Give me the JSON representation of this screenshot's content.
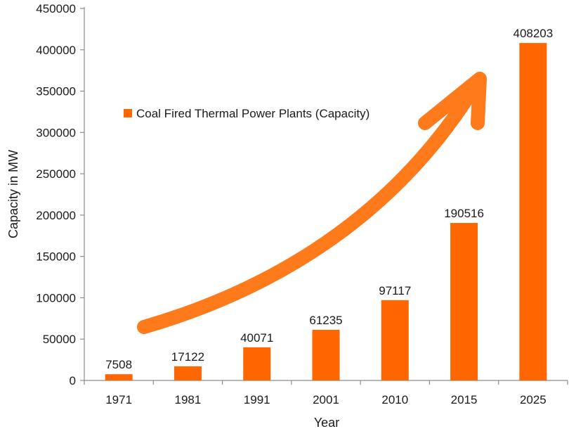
{
  "chart_data": {
    "type": "bar",
    "categories": [
      "1971",
      "1981",
      "1991",
      "2001",
      "2010",
      "2015",
      "2025"
    ],
    "series": [
      {
        "name": "Coal Fired Thermal Power Plants (Capacity)",
        "values": [
          7508,
          17122,
          40071,
          61235,
          97117,
          190516,
          408203
        ]
      }
    ],
    "data_labels": [
      "7508",
      "17122",
      "40071",
      "61235",
      "97117",
      "190516",
      "408203"
    ],
    "title": "",
    "xlabel": "Year",
    "ylabel": "Capacity in MW",
    "ylim": [
      0,
      450000
    ],
    "yticks": [
      0,
      50000,
      100000,
      150000,
      200000,
      250000,
      300000,
      350000,
      400000,
      450000
    ],
    "ytick_labels": [
      "0",
      "50000",
      "100000",
      "150000",
      "200000",
      "250000",
      "300000",
      "350000",
      "400000",
      "450000"
    ],
    "grid": false,
    "legend_position": "top-left inside plot",
    "annotation": "upward trend arrow",
    "colors": {
      "bar": "#ff6600",
      "arrow": "#ff7a1a",
      "axis": "#8c8c8c",
      "text": "#1a1a1a"
    }
  }
}
